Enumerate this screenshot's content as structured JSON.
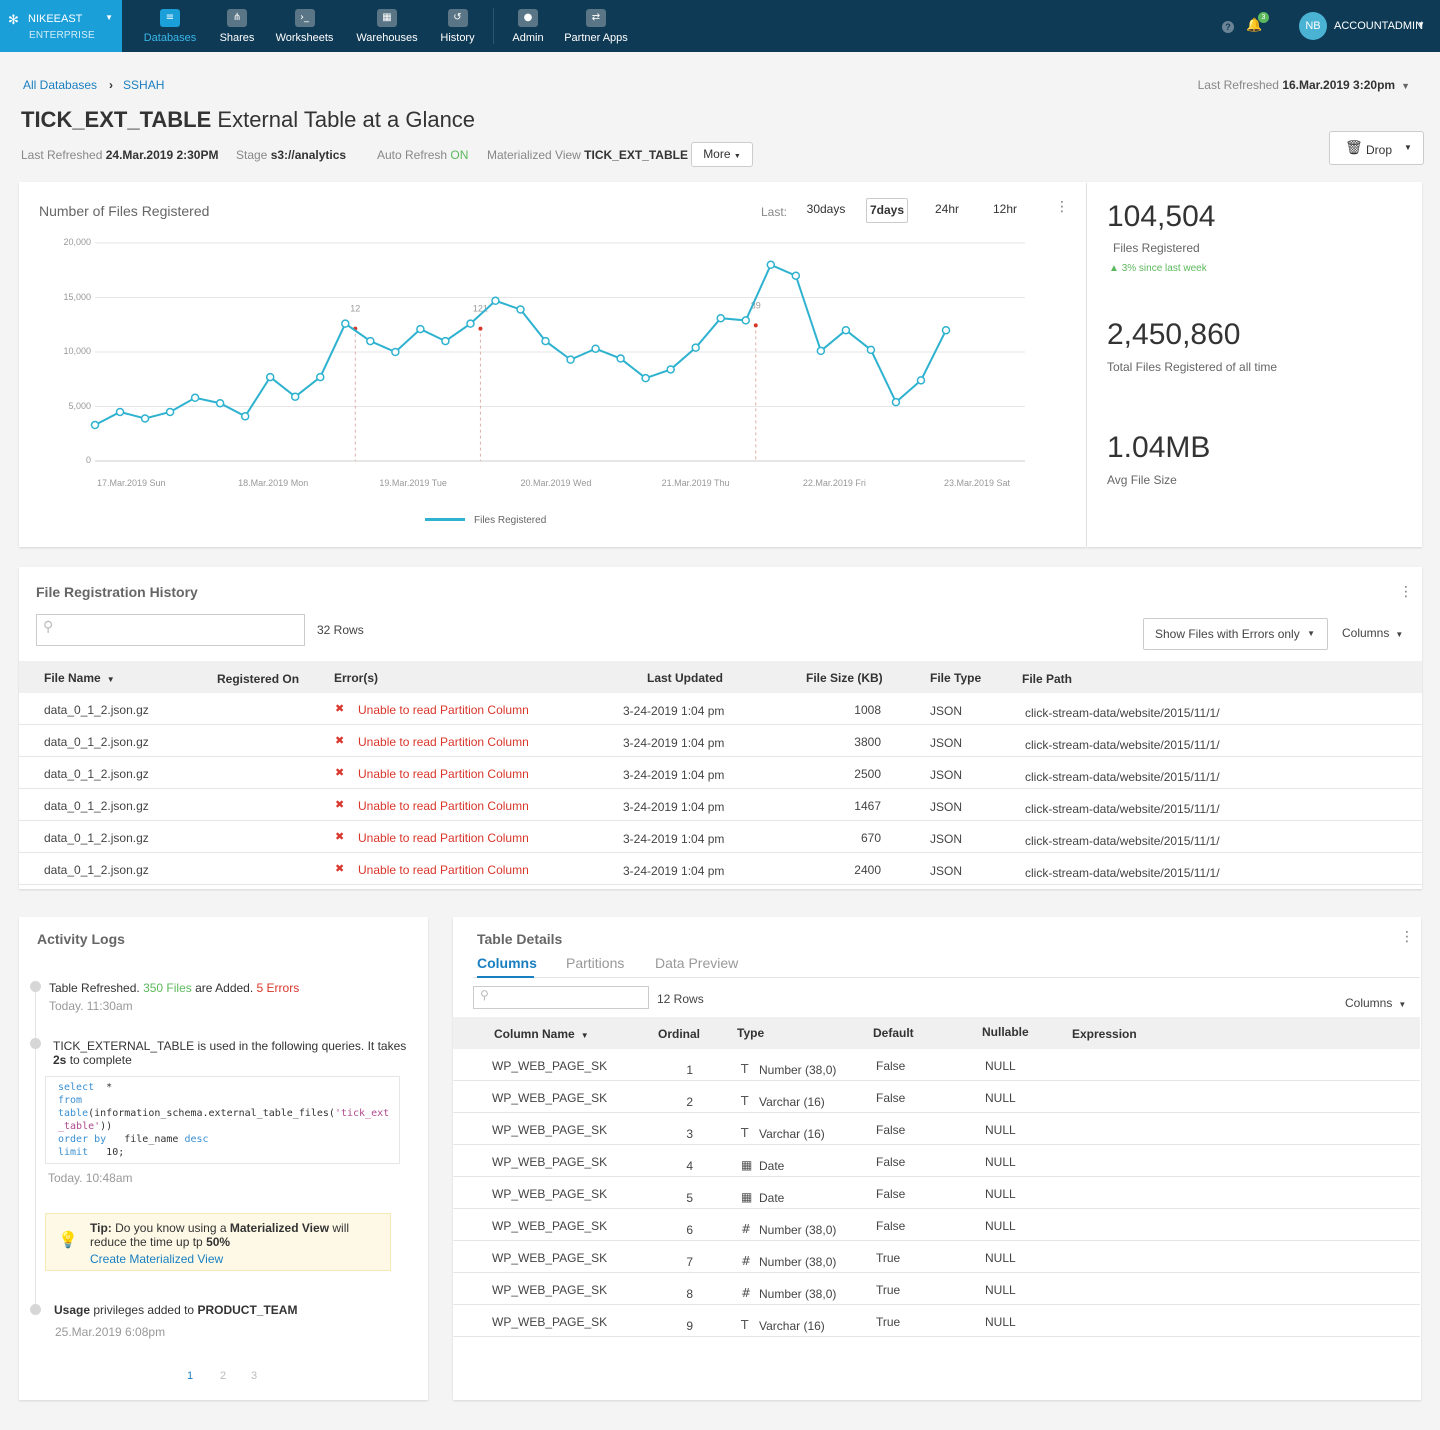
{
  "nav": {
    "account_name": "NIKEEAST",
    "account_edition": "ENTERPRISE",
    "items": [
      {
        "label": "Databases",
        "icon": "database-icon",
        "glyph": "≡"
      },
      {
        "label": "Shares",
        "icon": "share-icon",
        "glyph": "⋔"
      },
      {
        "label": "Worksheets",
        "icon": "terminal-icon",
        "glyph": "›_"
      },
      {
        "label": "Warehouses",
        "icon": "grid-icon",
        "glyph": "▦"
      },
      {
        "label": "History",
        "icon": "history-icon",
        "glyph": "↺"
      },
      {
        "label": "Admin",
        "icon": "admin-icon",
        "glyph": "●"
      },
      {
        "label": "Partner Apps",
        "icon": "partner-apps-icon",
        "glyph": "⇄"
      }
    ],
    "notification_count": "3",
    "user_initials": "NB",
    "user_name": "ACCOUNTADMIN"
  },
  "breadcrumb": {
    "root": "All Databases",
    "current": "SSHAH"
  },
  "last_refreshed_top": {
    "label": "Last Refreshed",
    "value": "16.Mar.2019 3:20pm"
  },
  "title": {
    "name": "TICK_EXT_TABLE",
    "suffix": "External Table at a Glance"
  },
  "meta": {
    "last_refreshed_label": "Last Refreshed",
    "last_refreshed_value": "24.Mar.2019 2:30PM",
    "stage_label": "Stage",
    "stage_value": "s3://analytics",
    "auto_refresh_label": "Auto Refresh",
    "auto_refresh_value": "ON",
    "mview_label": "Materialized View",
    "mview_value": "TICK_EXT_TABLE",
    "more_label": "More"
  },
  "drop_label": "Drop",
  "files_chart": {
    "title": "Number of Files Registered",
    "range_label": "Last:",
    "ranges": [
      "30days",
      "7days",
      "24hr",
      "12hr"
    ],
    "active_range": "7days",
    "legend": "Files Registered"
  },
  "chart_data": {
    "type": "line",
    "title": "Number of Files Registered",
    "ylim": [
      0,
      20000
    ],
    "y_ticks": [
      "0",
      "5,000",
      "10,000",
      "15,000",
      "20,000"
    ],
    "x_tick_labels": [
      "17.Mar.2019 Sun",
      "18.Mar.2019 Mon",
      "19.Mar.2019 Tue",
      "20.Mar.2019 Wed",
      "21.Mar.2019 Thu",
      "22.Mar.2019 Fri",
      "23.Mar.2019 Sat"
    ],
    "grid": true,
    "legend_position": "bottom",
    "series": [
      {
        "name": "Files Registered",
        "color": "#2eb2cf",
        "values": [
          3300,
          4500,
          3900,
          4500,
          5800,
          5300,
          4100,
          7700,
          5900,
          7700,
          12600,
          11000,
          10000,
          12100,
          11000,
          12600,
          14700,
          13900,
          11000,
          9300,
          10300,
          9400,
          7600,
          8400,
          10400,
          13100,
          12900,
          18000,
          17000,
          10100,
          12000,
          10200,
          5400,
          7400,
          12000
        ]
      }
    ],
    "annotations": [
      {
        "index": 10,
        "label": "12"
      },
      {
        "index": 15,
        "label": "121"
      },
      {
        "index": 26,
        "label": "39"
      }
    ]
  },
  "stats": [
    {
      "value": "104,504",
      "label": "Files Registered",
      "delta": "3% since last week"
    },
    {
      "value": "2,450,860",
      "label": "Total Files Registered of all time"
    },
    {
      "value": "1.04MB",
      "label": "Avg File Size"
    }
  ],
  "history": {
    "title": "File Registration History",
    "rows_count": "32 Rows",
    "filter_label": "Show Files with Errors only",
    "columns_label": "Columns",
    "headers": [
      "File Name",
      "Registered On",
      "Error(s)",
      "Last Updated",
      "File  Size (KB)",
      "File Type",
      "File Path"
    ],
    "rows": [
      {
        "file": "data_0_1_2.json.gz",
        "error": "Unable to read Partition Column",
        "updated": "3-24-2019 1:04 pm",
        "size": "1008",
        "type": "JSON",
        "path": "click-stream-data/website/2015/11/1/"
      },
      {
        "file": "data_0_1_2.json.gz",
        "error": "Unable to read Partition Column",
        "updated": "3-24-2019 1:04 pm",
        "size": "3800",
        "type": "JSON",
        "path": "click-stream-data/website/2015/11/1/"
      },
      {
        "file": "data_0_1_2.json.gz",
        "error": "Unable to read Partition Column",
        "updated": "3-24-2019 1:04 pm",
        "size": "2500",
        "type": "JSON",
        "path": "click-stream-data/website/2015/11/1/"
      },
      {
        "file": "data_0_1_2.json.gz",
        "error": "Unable to read Partition Column",
        "updated": "3-24-2019 1:04 pm",
        "size": "1467",
        "type": "JSON",
        "path": "click-stream-data/website/2015/11/1/"
      },
      {
        "file": "data_0_1_2.json.gz",
        "error": "Unable to read Partition Column",
        "updated": "3-24-2019 1:04 pm",
        "size": "670",
        "type": "JSON",
        "path": "click-stream-data/website/2015/11/1/"
      },
      {
        "file": "data_0_1_2.json.gz",
        "error": "Unable to read Partition Column",
        "updated": "3-24-2019 1:04 pm",
        "size": "2400",
        "type": "JSON",
        "path": "click-stream-data/website/2015/11/1/"
      }
    ]
  },
  "activity": {
    "title": "Activity Logs",
    "e1_pre": "Table Refreshed.",
    "e1_files": "350 Files",
    "e1_mid": "are Added.",
    "e1_errors": "5 Errors",
    "e1_time": "Today. 11:30am",
    "e2_line1": "TICK_EXTERNAL_TABLE is used in the following queries. It takes",
    "e2_bold": "2s",
    "e2_rest": "to complete",
    "code": {
      "l1_kw": "select",
      "l1": "*",
      "l2_kw": "from",
      "l3_kw": "table",
      "l3": "(information_schema.external_table_files(",
      "l3_str": "'tick_ext",
      "l4_str": "_table'",
      "l4": "))",
      "l5_kw": "order by",
      "l5": "file_name",
      "l5_kw2": "desc",
      "l6_kw": "limit",
      "l6": "10;"
    },
    "e2_time": "Today. 10:48am",
    "tip_label": "Tip:",
    "tip_pre": "Do you know using a",
    "tip_bold": "Materialized View",
    "tip_mid": "will reduce the time up tp",
    "tip_pct": "50%",
    "tip_link": "Create Materialized View",
    "e3_bold1": "Usage",
    "e3_mid": "privileges added to",
    "e3_bold2": "PRODUCT_TEAM",
    "e3_time": "25.Mar.2019 6:08pm",
    "pages": [
      "1",
      "2",
      "3"
    ]
  },
  "details": {
    "title": "Table Details",
    "tabs": [
      "Columns",
      "Partitions",
      "Data Preview"
    ],
    "rows_count": "12 Rows",
    "columns_label": "Columns",
    "headers": [
      "Column Name",
      "Ordinal",
      "Type",
      "Default",
      "Nullable",
      "Expression"
    ],
    "rows": [
      {
        "name": "WP_WEB_PAGE_SK",
        "ordinal": "1",
        "type_icon": "text-type-icon",
        "glyph": "T",
        "type": "Number (38,0)",
        "default": "False",
        "nullable": "NULL"
      },
      {
        "name": "WP_WEB_PAGE_SK",
        "ordinal": "2",
        "type_icon": "text-type-icon",
        "glyph": "T",
        "type": "Varchar (16)",
        "default": "False",
        "nullable": "NULL"
      },
      {
        "name": "WP_WEB_PAGE_SK",
        "ordinal": "3",
        "type_icon": "text-type-icon",
        "glyph": "T",
        "type": "Varchar (16)",
        "default": "False",
        "nullable": "NULL"
      },
      {
        "name": "WP_WEB_PAGE_SK",
        "ordinal": "4",
        "type_icon": "calendar-icon",
        "glyph": "▦",
        "type": "Date",
        "default": "False",
        "nullable": "NULL"
      },
      {
        "name": "WP_WEB_PAGE_SK",
        "ordinal": "5",
        "type_icon": "calendar-icon",
        "glyph": "▦",
        "type": "Date",
        "default": "False",
        "nullable": "NULL"
      },
      {
        "name": "WP_WEB_PAGE_SK",
        "ordinal": "6",
        "type_icon": "hash-icon",
        "glyph": "#",
        "type": "Number (38,0)",
        "default": "False",
        "nullable": "NULL"
      },
      {
        "name": "WP_WEB_PAGE_SK",
        "ordinal": "7",
        "type_icon": "hash-icon",
        "glyph": "#",
        "type": "Number (38,0)",
        "default": "True",
        "nullable": "NULL"
      },
      {
        "name": "WP_WEB_PAGE_SK",
        "ordinal": "8",
        "type_icon": "hash-icon",
        "glyph": "#",
        "type": "Number (38,0)",
        "default": "True",
        "nullable": "NULL"
      },
      {
        "name": "WP_WEB_PAGE_SK",
        "ordinal": "9",
        "type_icon": "text-type-icon",
        "glyph": "T",
        "type": "Varchar (16)",
        "default": "True",
        "nullable": "NULL"
      }
    ]
  }
}
